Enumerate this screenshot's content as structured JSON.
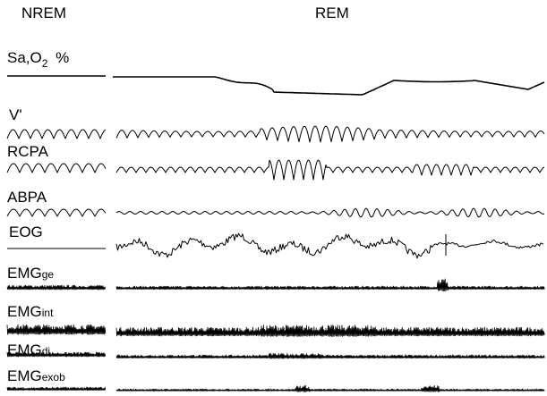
{
  "header": {
    "nrem": "NREM",
    "rem": "REM"
  },
  "channels": {
    "sao2": {
      "prefix": "Sa,O",
      "sub": "2",
      "unit": "%"
    },
    "v": {
      "label": "V'"
    },
    "rcpa": {
      "label": "RCPA"
    },
    "abpa": {
      "label": "ABPA"
    },
    "eog": {
      "label": "EOG"
    },
    "emgge": {
      "base": "EMG",
      "sub": "ge"
    },
    "emgint": {
      "base": "EMG",
      "sub": "int"
    },
    "emgdi": {
      "base": "EMG",
      "sub": "di"
    },
    "emgexob": {
      "base": "EMG",
      "sub": "exob"
    }
  }
}
